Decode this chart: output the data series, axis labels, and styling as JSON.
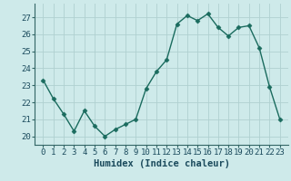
{
  "x": [
    0,
    1,
    2,
    3,
    4,
    5,
    6,
    7,
    8,
    9,
    10,
    11,
    12,
    13,
    14,
    15,
    16,
    17,
    18,
    19,
    20,
    21,
    22,
    23
  ],
  "y": [
    23.3,
    22.2,
    21.3,
    20.3,
    21.5,
    20.6,
    20.0,
    20.4,
    20.7,
    21.0,
    22.8,
    23.8,
    24.5,
    26.6,
    27.1,
    26.8,
    27.2,
    26.4,
    25.9,
    26.4,
    26.5,
    25.2,
    22.9,
    21.0
  ],
  "line_color": "#1a6b5e",
  "marker": "D",
  "marker_size": 2.5,
  "bg_color": "#ceeaea",
  "grid_color": "#b0d0d0",
  "xlabel": "Humidex (Indice chaleur)",
  "ylim": [
    19.5,
    27.8
  ],
  "yticks": [
    20,
    21,
    22,
    23,
    24,
    25,
    26,
    27
  ],
  "xticks": [
    0,
    1,
    2,
    3,
    4,
    5,
    6,
    7,
    8,
    9,
    10,
    11,
    12,
    13,
    14,
    15,
    16,
    17,
    18,
    19,
    20,
    21,
    22,
    23
  ],
  "xlabel_fontsize": 7.5,
  "tick_fontsize": 6.5,
  "line_width": 1.0
}
